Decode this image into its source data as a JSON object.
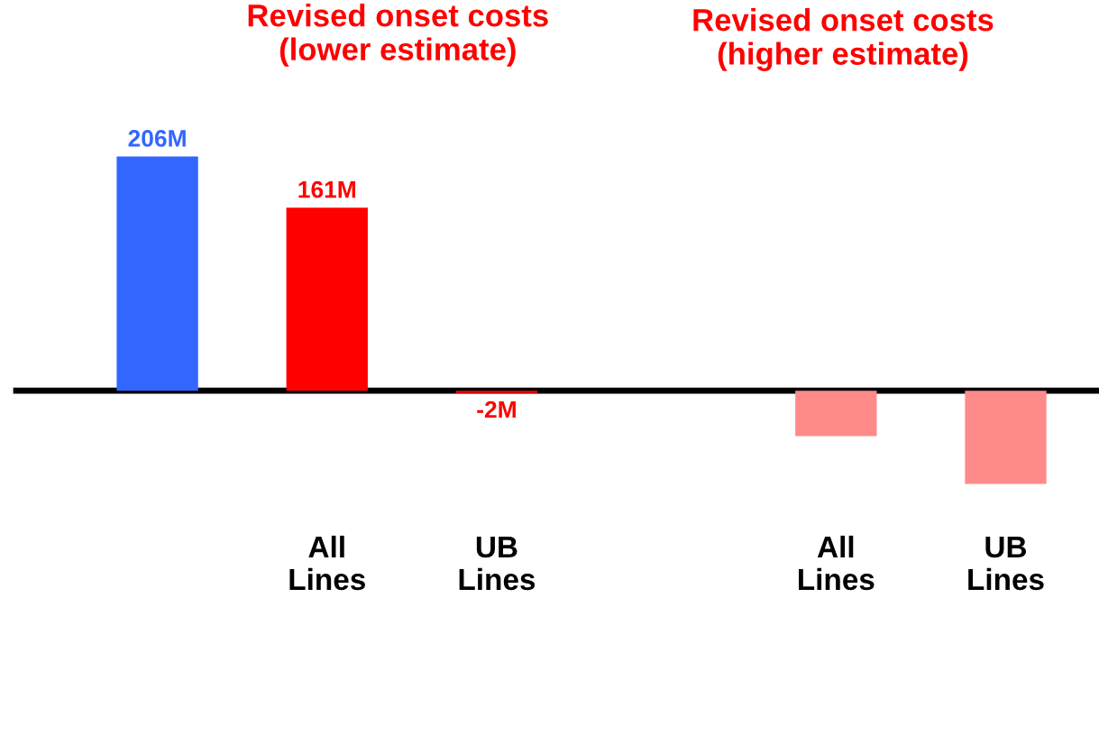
{
  "chart_data": {
    "type": "bar",
    "categories": [
      null,
      "All\nLines",
      "UB\nLines",
      null,
      "All\nLines",
      "UB\nLines"
    ],
    "values": [
      206,
      161,
      -2,
      null,
      -40,
      -82
    ],
    "colors": [
      "#3366ff",
      "#ff0000",
      "#ff0000",
      null,
      "#ff8a8a",
      "#ff8a8a"
    ],
    "value_labels": [
      "206M",
      "161M",
      "-2M",
      null,
      null,
      null
    ],
    "annotations": [
      "Revised onset costs\n(lower estimate)",
      "Revised onset costs\n(higher estimate)"
    ],
    "tick_labels": "x"
  }
}
